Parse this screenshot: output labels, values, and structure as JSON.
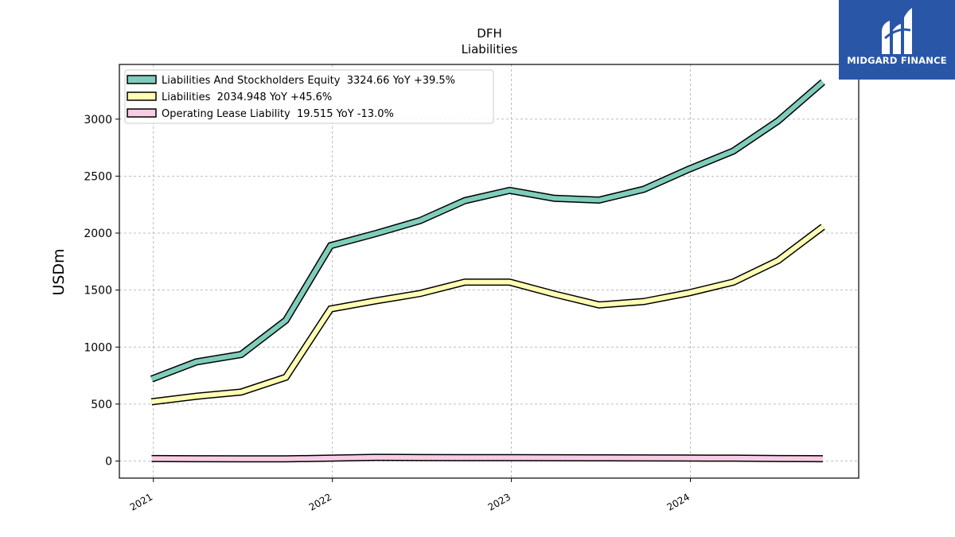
{
  "chart_data": {
    "type": "line",
    "title": "DFH",
    "subtitle": "Liabilities",
    "ylabel": "USDm",
    "xlabel": "",
    "ylim": [
      -150,
      3480
    ],
    "yticks": [
      0,
      500,
      1000,
      1500,
      2000,
      2500,
      3000
    ],
    "xlim": [
      2020.81,
      2024.94
    ],
    "xticks": [
      {
        "label": "2021",
        "value": 2021.0
      },
      {
        "label": "2022",
        "value": 2022.0
      },
      {
        "label": "2023",
        "value": 2023.0
      },
      {
        "label": "2024",
        "value": 2024.0
      }
    ],
    "grid": true,
    "legend_position": "top-left",
    "x": [
      2020.99,
      2021.24,
      2021.49,
      2021.74,
      2021.99,
      2022.24,
      2022.49,
      2022.74,
      2022.99,
      2023.24,
      2023.49,
      2023.74,
      2023.99,
      2024.24,
      2024.49,
      2024.74
    ],
    "series": [
      {
        "name": "Liabilities And Stockholders Equity",
        "legend": "Liabilities And Stockholders Equity  3324.66 YoY +39.5%",
        "color": "#7fcdbb",
        "values": [
          720,
          870,
          935,
          1235,
          1890,
          1995,
          2110,
          2285,
          2375,
          2305,
          2290,
          2385,
          2560,
          2720,
          2985,
          3325
        ]
      },
      {
        "name": "Liabilities",
        "legend": "Liabilities  2034.948 YoY +45.6%",
        "color": "#ffffb3",
        "values": [
          520,
          568,
          605,
          735,
          1335,
          1405,
          1470,
          1570,
          1570,
          1465,
          1370,
          1400,
          1475,
          1570,
          1760,
          2055
        ]
      },
      {
        "name": "Operating Lease Liability",
        "legend": "Operating Lease Liability  19.515 YoY -13.0%",
        "color": "#f8cce4",
        "values": [
          22,
          20,
          19,
          19,
          25,
          32,
          31,
          30,
          30,
          29,
          28,
          27,
          26,
          25,
          22,
          20
        ]
      }
    ]
  },
  "logo": {
    "text": "MIDGARD FINANCE",
    "bg_color": "#2a56a8"
  }
}
